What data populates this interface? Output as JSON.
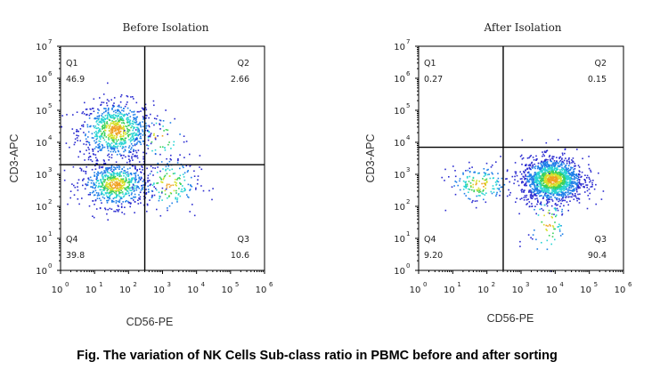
{
  "chart_data": [
    {
      "type": "scatter",
      "title": "Before Isolation",
      "xlabel": "CD56-PE",
      "ylabel": "CD3-APC",
      "xscale": "log",
      "yscale": "log",
      "xlim": [
        1,
        1000000
      ],
      "ylim": [
        1,
        10000000
      ],
      "xgate": 300,
      "ygate": 2000,
      "quadrants": [
        {
          "name": "Q1",
          "value": "46.9"
        },
        {
          "name": "Q2",
          "value": "2.66"
        },
        {
          "name": "Q3",
          "value": "10.6"
        },
        {
          "name": "Q4",
          "value": "39.8"
        }
      ],
      "populations": [
        {
          "x": 40,
          "y": 25000,
          "spread_x": 0.55,
          "spread_y": 0.45,
          "weight": 0.47
        },
        {
          "x": 40,
          "y": 500,
          "spread_x": 0.5,
          "spread_y": 0.35,
          "weight": 0.4
        },
        {
          "x": 1500,
          "y": 500,
          "spread_x": 0.45,
          "spread_y": 0.45,
          "weight": 0.1
        },
        {
          "x": 800,
          "y": 15000,
          "spread_x": 0.4,
          "spread_y": 0.4,
          "weight": 0.03
        }
      ]
    },
    {
      "type": "scatter",
      "title": "After Isolation",
      "xlabel": "CD56-PE",
      "ylabel": "CD3-APC",
      "xscale": "log",
      "yscale": "log",
      "xlim": [
        1,
        1000000
      ],
      "ylim": [
        1,
        10000000
      ],
      "xgate": 300,
      "ygate": 7000,
      "quadrants": [
        {
          "name": "Q1",
          "value": "0.27"
        },
        {
          "name": "Q2",
          "value": "0.15"
        },
        {
          "name": "Q3",
          "value": "90.4"
        },
        {
          "name": "Q4",
          "value": "9.20"
        }
      ],
      "populations": [
        {
          "x": 8000,
          "y": 700,
          "spread_x": 0.45,
          "spread_y": 0.35,
          "weight": 0.86
        },
        {
          "x": 60,
          "y": 500,
          "spread_x": 0.45,
          "spread_y": 0.3,
          "weight": 0.1
        },
        {
          "x": 6000,
          "y": 30,
          "spread_x": 0.3,
          "spread_y": 0.6,
          "weight": 0.04
        }
      ]
    }
  ],
  "xticks": [
    "0",
    "1",
    "2",
    "3",
    "4",
    "5",
    "6"
  ],
  "yticks": [
    "0",
    "1",
    "2",
    "3",
    "4",
    "5",
    "6",
    "7"
  ],
  "tick_base": "10",
  "caption": "Fig. The variation of NK Cells Sub-class ratio in PBMC before and after sorting",
  "colors": {
    "density": [
      "#2b2bd0",
      "#1f7fe8",
      "#2ad4d4",
      "#3ad05a",
      "#d6e02a",
      "#f0a020"
    ],
    "gate": "#000000",
    "axis": "#000000"
  }
}
